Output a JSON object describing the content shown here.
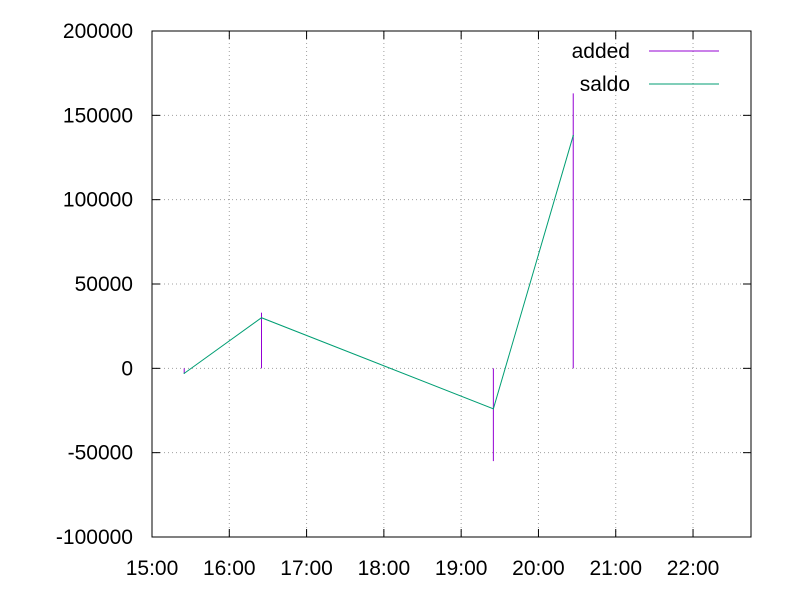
{
  "chart_data": {
    "type": "line",
    "x_axis": {
      "type": "time",
      "min": "15:00",
      "max": "22:45",
      "ticks": [
        "15:00",
        "16:00",
        "17:00",
        "18:00",
        "19:00",
        "20:00",
        "21:00",
        "22:00"
      ]
    },
    "y_axis": {
      "min": -100000,
      "max": 200000,
      "ticks": [
        -100000,
        -50000,
        0,
        50000,
        100000,
        150000,
        200000
      ],
      "tick_labels": [
        "-100000",
        "-50000",
        "0",
        "50000",
        "100000",
        "150000",
        "200000"
      ]
    },
    "grid": true,
    "legend_position": "top-right",
    "series": [
      {
        "name": "added",
        "style": "impulses",
        "color": "#9400d3",
        "points": [
          {
            "x": "15:25",
            "y": -3000
          },
          {
            "x": "16:25",
            "y": 33000
          },
          {
            "x": "19:25",
            "y": -55000
          },
          {
            "x": "20:27",
            "y": 163000
          }
        ]
      },
      {
        "name": "saldo",
        "style": "lines",
        "color": "#009e73",
        "points": [
          {
            "x": "15:25",
            "y": -3000
          },
          {
            "x": "16:25",
            "y": 30000
          },
          {
            "x": "19:25",
            "y": -24000
          },
          {
            "x": "20:27",
            "y": 138000
          }
        ]
      }
    ]
  }
}
